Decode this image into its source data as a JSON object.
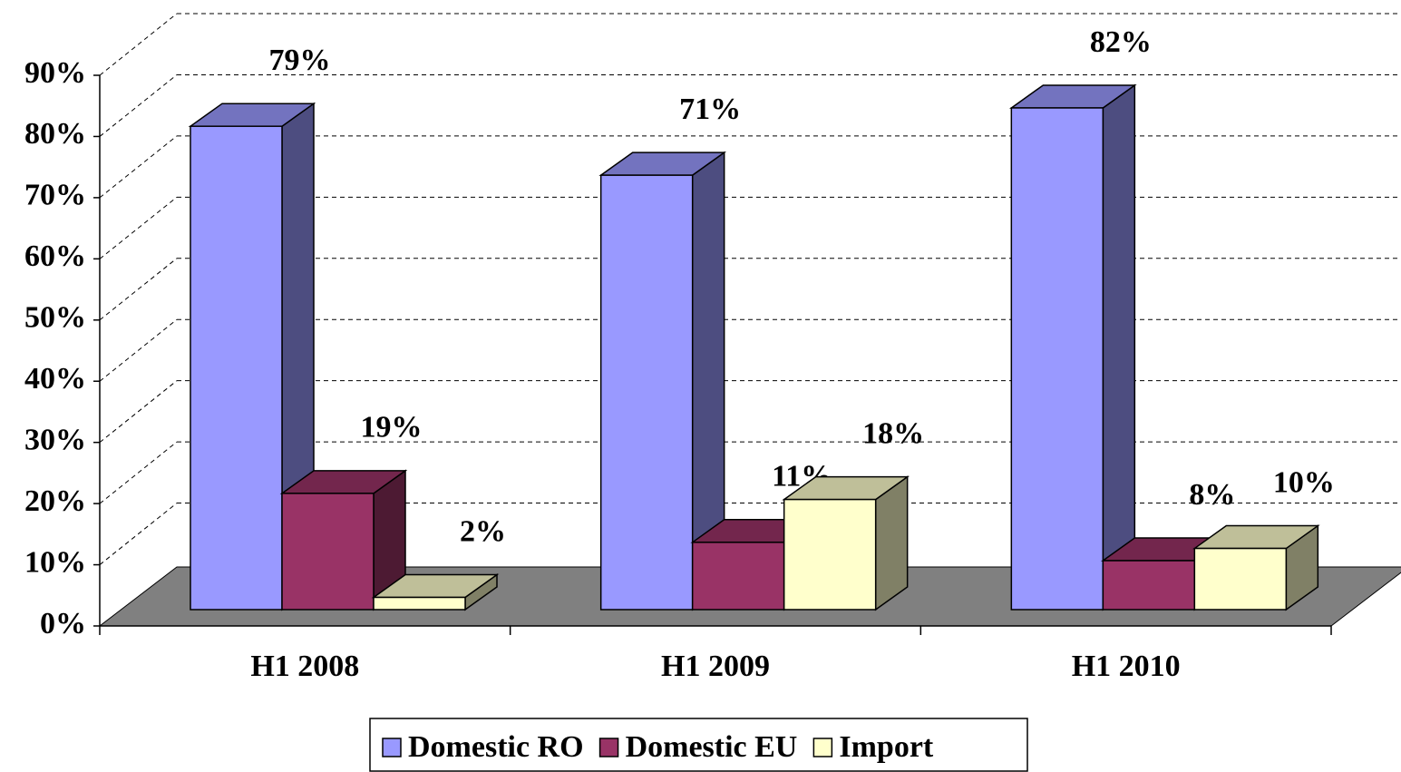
{
  "chart_data": {
    "type": "bar3d",
    "categories": [
      "H1 2008",
      "H1 2009",
      "H1 2010"
    ],
    "series": [
      {
        "name": "Domestic RO",
        "color": "#9999ff",
        "values": [
          79,
          71,
          82
        ],
        "value_labels": [
          "79%",
          "71%",
          "82%"
        ]
      },
      {
        "name": "Domestic EU",
        "color": "#993366",
        "values": [
          19,
          11,
          8
        ],
        "value_labels": [
          "19%",
          "11%",
          "8%"
        ]
      },
      {
        "name": "Import",
        "color": "#ffffcc",
        "values": [
          2,
          18,
          10
        ],
        "value_labels": [
          "2%",
          "18%",
          "10%"
        ]
      }
    ],
    "ylim": [
      0,
      90
    ],
    "yticks": [
      {
        "value": 0,
        "label": "0%"
      },
      {
        "value": 10,
        "label": "10%"
      },
      {
        "value": 20,
        "label": "20%"
      },
      {
        "value": 30,
        "label": "30%"
      },
      {
        "value": 40,
        "label": "40%"
      },
      {
        "value": 50,
        "label": "50%"
      },
      {
        "value": 60,
        "label": "60%"
      },
      {
        "value": 70,
        "label": "70%"
      },
      {
        "value": 80,
        "label": "80%"
      },
      {
        "value": 90,
        "label": "90%"
      }
    ],
    "grid": true,
    "legend": "bottom"
  }
}
